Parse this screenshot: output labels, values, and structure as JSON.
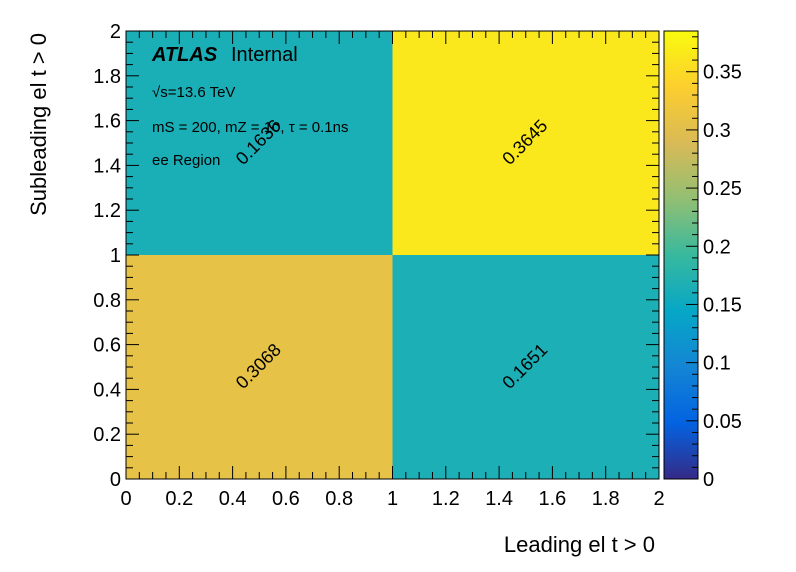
{
  "chart_data": {
    "type": "heatmap",
    "title": "",
    "xlabel": "Leading el t > 0",
    "ylabel": "Subleading el t > 0",
    "x_edges": [
      0,
      1,
      2
    ],
    "y_edges": [
      0,
      1,
      2
    ],
    "xlim": [
      0,
      2
    ],
    "ylim": [
      0,
      2
    ],
    "x_ticks": [
      "0",
      "0.2",
      "0.4",
      "0.6",
      "0.8",
      "1",
      "1.2",
      "1.4",
      "1.6",
      "1.8",
      "2"
    ],
    "y_ticks": [
      "0",
      "0.2",
      "0.4",
      "0.6",
      "0.8",
      "1",
      "1.2",
      "1.4",
      "1.6",
      "1.8",
      "2"
    ],
    "cells": [
      {
        "x": 0.5,
        "y": 0.5,
        "value": 0.3068,
        "label": "0.3068"
      },
      {
        "x": 1.5,
        "y": 0.5,
        "value": 0.1651,
        "label": "0.1651"
      },
      {
        "x": 0.5,
        "y": 1.5,
        "value": 0.1636,
        "label": "0.1636"
      },
      {
        "x": 1.5,
        "y": 1.5,
        "value": 0.3645,
        "label": "0.3645"
      }
    ],
    "colorbar": {
      "zlim": [
        0,
        0.385
      ],
      "ticks": [
        "0",
        "0.05",
        "0.1",
        "0.15",
        "0.2",
        "0.25",
        "0.3",
        "0.35"
      ],
      "palette": "parula"
    },
    "grid": false,
    "annotations": {
      "atlas": "ATLAS",
      "atlas_status": "Internal",
      "energy": "√s=13.6 TeV",
      "model": "mS = 200, mZ = 10, τ = 0.1ns",
      "region": "ee Region"
    }
  }
}
